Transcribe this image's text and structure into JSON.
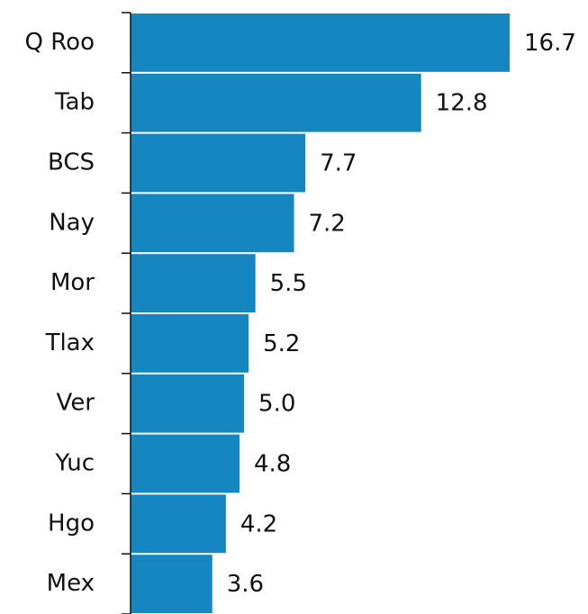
{
  "chart_data": {
    "type": "hbar",
    "categories": [
      "Q Roo",
      "Tab",
      "BCS",
      "Nay",
      "Mor",
      "Tlax",
      "Ver",
      "Yuc",
      "Hgo",
      "Mex"
    ],
    "values": [
      16.7,
      12.8,
      7.7,
      7.2,
      5.5,
      5.2,
      5.0,
      4.8,
      4.2,
      3.6
    ],
    "value_labels": [
      "16.7",
      "12.8",
      "7.7",
      "7.2",
      "5.5",
      "5.2",
      "5.0",
      "4.8",
      "4.2",
      "3.6"
    ],
    "color": "#1686c1"
  }
}
